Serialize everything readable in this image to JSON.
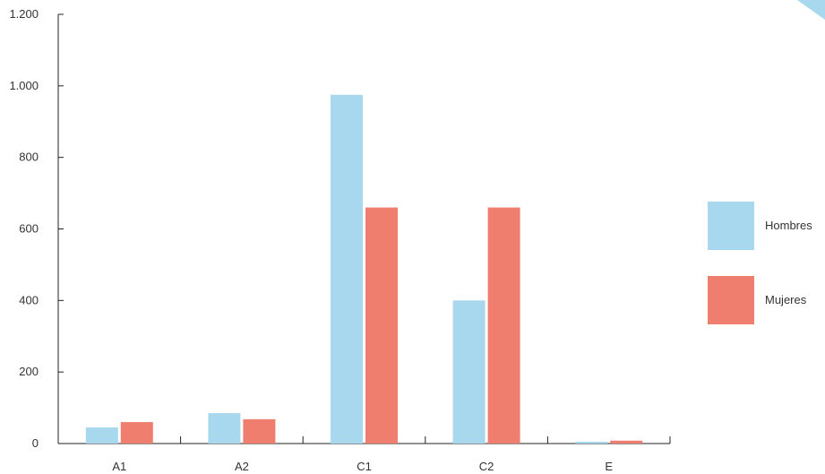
{
  "chart_data": {
    "type": "bar",
    "categories": [
      "A1",
      "A2",
      "C1",
      "C2",
      "E"
    ],
    "series": [
      {
        "name": "Hombres",
        "color": "#a8d8ee",
        "values": [
          45,
          85,
          975,
          400,
          5
        ]
      },
      {
        "name": "Mujeres",
        "color": "#f07e6e",
        "values": [
          60,
          68,
          660,
          660,
          8
        ]
      }
    ],
    "ylim": [
      0,
      1200
    ],
    "yticks": [
      0,
      200,
      400,
      600,
      800,
      1000,
      1200
    ],
    "ytick_labels": [
      "0",
      "200",
      "400",
      "600",
      "800",
      "1.000",
      "1.200"
    ],
    "title": "",
    "xlabel": "",
    "ylabel": "",
    "grid": false,
    "legend": "right"
  },
  "decor": {
    "corner_color": "#a8d8ee"
  }
}
